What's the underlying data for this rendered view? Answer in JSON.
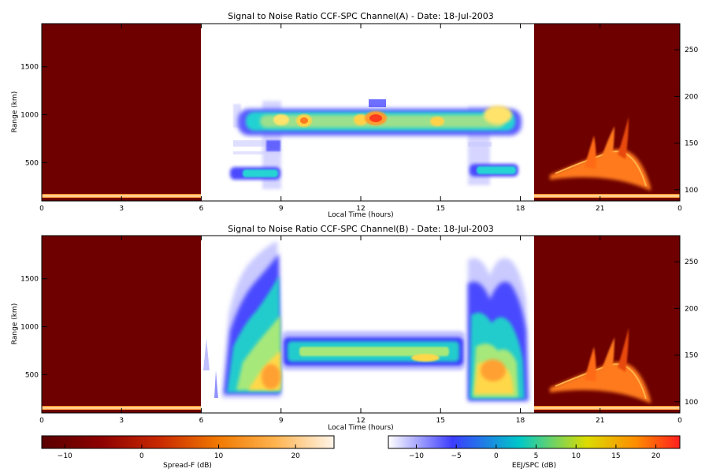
{
  "chart_data": [
    {
      "type": "heatmap",
      "title": "Signal to Noise Ratio CCF-SPC Channel(A) - Date: 18-Jul-2003",
      "xlabel": "Local Time (hours)",
      "ylabel": "Range (km)",
      "x_ticks": [
        "0",
        "3",
        "6",
        "9",
        "12",
        "15",
        "18",
        "21",
        "0"
      ],
      "y_ticks_left": [
        500,
        1000,
        1500
      ],
      "y_ticks_right": [
        100,
        150,
        200,
        250
      ],
      "xlim": [
        0,
        24
      ],
      "ylim": [
        100,
        1950
      ],
      "ylim_right": [
        88,
        278
      ],
      "segments": [
        {
          "name": "Spread-F",
          "x_range": [
            0,
            6
          ],
          "colormap": "Spread-F"
        },
        {
          "name": "EEJ/SPC",
          "x_range": [
            6,
            18.5
          ],
          "colormap": "EEJ/SPC"
        },
        {
          "name": "Spread-F",
          "x_range": [
            18.5,
            24
          ],
          "colormap": "Spread-F"
        }
      ],
      "features": [
        {
          "kind": "main-echo-layer",
          "x": [
            7.6,
            17.8
          ],
          "range_km": [
            900,
            1060
          ],
          "peak_snr_db": 20
        },
        {
          "kind": "low-echo-layer",
          "x": [
            7.1,
            9.0
          ],
          "range_km": [
            300,
            450
          ]
        },
        {
          "kind": "low-echo-layer",
          "x": [
            16.1,
            17.8
          ],
          "range_km": [
            300,
            450
          ]
        },
        {
          "kind": "spread-f-plume",
          "x": [
            19.0,
            23.0
          ],
          "right_axis": [
            110,
            180
          ]
        }
      ]
    },
    {
      "type": "heatmap",
      "title": "Signal to Noise Ratio CCF-SPC Channel(B) - Date: 18-Jul-2003",
      "xlabel": "Local Time (hours)",
      "ylabel": "Range (km)",
      "x_ticks": [
        "0",
        "3",
        "6",
        "9",
        "12",
        "15",
        "18",
        "21",
        "0"
      ],
      "y_ticks_left": [
        500,
        1000,
        1500
      ],
      "y_ticks_right": [
        100,
        150,
        200,
        250
      ],
      "xlim": [
        0,
        24
      ],
      "ylim": [
        100,
        1950
      ],
      "ylim_right": [
        88,
        278
      ],
      "segments": [
        {
          "name": "Spread-F",
          "x_range": [
            0,
            6
          ],
          "colormap": "Spread-F"
        },
        {
          "name": "EEJ/SPC",
          "x_range": [
            6,
            18.5
          ],
          "colormap": "EEJ/SPC"
        },
        {
          "name": "Spread-F",
          "x_range": [
            18.5,
            24
          ],
          "colormap": "Spread-F"
        }
      ],
      "features": [
        {
          "kind": "morning-plume",
          "x": [
            6.8,
            9.0
          ],
          "range_km": [
            300,
            1850
          ],
          "peak_snr_db": 18
        },
        {
          "kind": "midday-band",
          "x": [
            9.0,
            16.0
          ],
          "range_km": [
            620,
            900
          ],
          "peak_snr_db": 10
        },
        {
          "kind": "evening-plume",
          "x": [
            16.0,
            18.5
          ],
          "range_km": [
            200,
            1750
          ],
          "peak_snr_db": 18
        },
        {
          "kind": "spread-f-plume",
          "x": [
            19.0,
            23.0
          ],
          "right_axis": [
            110,
            180
          ]
        }
      ]
    }
  ],
  "colorbars": [
    {
      "label": "Spread-F (dB)",
      "range": [
        -13,
        25
      ],
      "ticks": [
        -10,
        0,
        10,
        20
      ],
      "colormap": "Spread-F"
    },
    {
      "label": "EEJ/SPC (dB)",
      "range": [
        -13.5,
        23
      ],
      "ticks": [
        -10,
        -5,
        0,
        5,
        10,
        15,
        20
      ],
      "colormap": "EEJ/SPC"
    }
  ],
  "colors": {
    "spreadf_background": "#6e0000",
    "spreadf_ramp": [
      "#5a0000",
      "#8c0000",
      "#c82800",
      "#f07800",
      "#ffb450",
      "#fff5ea"
    ],
    "eej_ramp": [
      "#ffffff",
      "#3c3cff",
      "#00c8c8",
      "#dcdc00",
      "#ff8c00",
      "#ff1e1e"
    ]
  }
}
